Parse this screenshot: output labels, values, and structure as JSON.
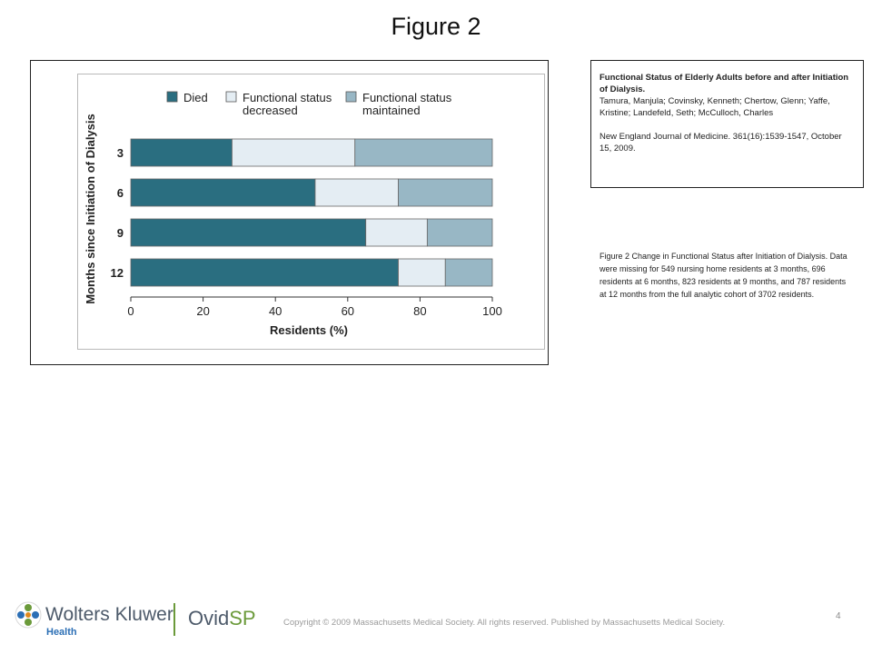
{
  "slide": {
    "title": "Figure 2",
    "page_number": "4",
    "copyright": "Copyright © 2009 Massachusetts Medical Society. All rights reserved.  Published by Massachusetts Medical Society."
  },
  "citation": {
    "title": "Functional Status of Elderly Adults before and after Initiation of Dialysis.",
    "authors": "Tamura, Manjula; Covinsky, Kenneth; Chertow, Glenn; Yaffe, Kristine; Landefeld, Seth; McCulloch, Charles",
    "journal": "New England Journal of Medicine. 361(16):1539-1547, October 15, 2009."
  },
  "caption": "Figure 2 Change in Functional Status after Initiation of Dialysis. Data were missing for 549 nursing home residents at 3 months, 696 residents at 6 months, 823 residents at 9 months, and 787 residents at 12 months from the full analytic cohort of 3702 residents.",
  "logos": {
    "wolters_kluwer": "Wolters Kluwer",
    "wolters_kluwer_sub": "Health",
    "ovid_prefix": "Ovid",
    "ovid_suffix": "SP"
  },
  "chart_data": {
    "type": "bar",
    "orientation": "horizontal",
    "stacked": true,
    "categories": [
      "3",
      "6",
      "9",
      "12"
    ],
    "series": [
      {
        "name": "Died",
        "values": [
          28,
          51,
          65,
          74
        ],
        "color": "#2a6e80"
      },
      {
        "name": "Functional status decreased",
        "values": [
          34,
          23,
          17,
          13
        ],
        "color": "#e4edf3"
      },
      {
        "name": "Functional status maintained",
        "values": [
          38,
          26,
          18,
          13
        ],
        "color": "#98b7c5"
      }
    ],
    "legend_lines": [
      [
        "Died"
      ],
      [
        "Functional status",
        "decreased"
      ],
      [
        "Functional status",
        "maintained"
      ]
    ],
    "xlabel": "Residents (%)",
    "ylabel": "Months since Initiation of Dialysis",
    "xlim": [
      0,
      100
    ],
    "xticks": [
      0,
      20,
      40,
      60,
      80,
      100
    ],
    "legend_position": "top",
    "grid": false
  }
}
